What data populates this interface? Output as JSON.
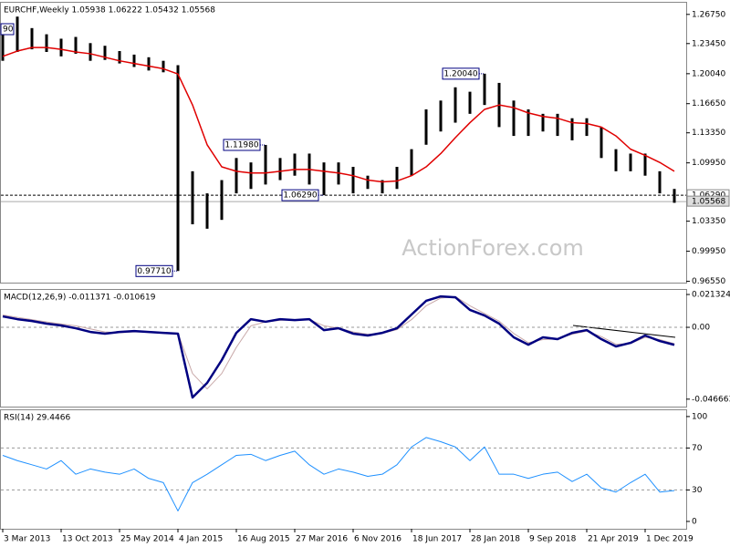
{
  "chart_data": [
    {
      "type": "ohlc",
      "title": "EURCHF,Weekly 1.05938 1.06222 1.05432 1.05568",
      "corner_label": "90",
      "watermark": "ActionForex.com",
      "color": "#000000",
      "categories": [
        "3 Mar 2013",
        null,
        null,
        null,
        "13 Oct 2013",
        null,
        null,
        null,
        "25 May 2014",
        null,
        null,
        null,
        "4 Jan 2015",
        null,
        null,
        null,
        "16 Aug 2015",
        null,
        null,
        null,
        "27 Mar 2016",
        null,
        null,
        null,
        "6 Nov 2016",
        null,
        null,
        null,
        "18 Jun 2017",
        null,
        null,
        null,
        "28 Jan 2018",
        null,
        null,
        null,
        "9 Sep 2018",
        null,
        null,
        null,
        "21 Apr 2019",
        null,
        null,
        null,
        "1 Dec 2019",
        null,
        null
      ],
      "high": [
        1.25,
        1.265,
        1.252,
        1.245,
        1.24,
        1.242,
        1.235,
        1.232,
        1.226,
        1.222,
        1.219,
        1.215,
        1.21,
        1.09,
        1.065,
        1.08,
        1.105,
        1.1,
        1.1198,
        1.105,
        1.11,
        1.11,
        1.1,
        1.1,
        1.095,
        1.085,
        1.08,
        1.095,
        1.115,
        1.16,
        1.17,
        1.185,
        1.18,
        1.2004,
        1.19,
        1.17,
        1.16,
        1.155,
        1.155,
        1.15,
        1.15,
        1.14,
        1.115,
        1.11,
        1.11,
        1.09,
        1.07
      ],
      "low": [
        1.215,
        1.225,
        1.228,
        1.225,
        1.22,
        1.223,
        1.215,
        1.216,
        1.212,
        1.208,
        1.204,
        1.202,
        0.9771,
        1.03,
        1.025,
        1.035,
        1.065,
        1.07,
        1.075,
        1.08,
        1.085,
        1.075,
        1.0629,
        1.075,
        1.065,
        1.07,
        1.065,
        1.07,
        1.085,
        1.12,
        1.135,
        1.145,
        1.155,
        1.165,
        1.14,
        1.13,
        1.13,
        1.135,
        1.13,
        1.125,
        1.13,
        1.105,
        1.09,
        1.09,
        1.085,
        1.065,
        1.05432
      ],
      "series": [
        {
          "color": "#e00000",
          "values": [
            1.22,
            1.226,
            1.23,
            1.23,
            1.228,
            1.225,
            1.223,
            1.219,
            1.215,
            1.212,
            1.209,
            1.206,
            1.2,
            1.165,
            1.12,
            1.095,
            1.09,
            1.088,
            1.088,
            1.09,
            1.092,
            1.092,
            1.09,
            1.088,
            1.085,
            1.08,
            1.078,
            1.079,
            1.085,
            1.095,
            1.11,
            1.128,
            1.145,
            1.16,
            1.165,
            1.162,
            1.156,
            1.152,
            1.15,
            1.145,
            1.144,
            1.14,
            1.13,
            1.115,
            1.108,
            1.1,
            1.09
          ]
        }
      ],
      "annotations": [
        {
          "label": "1.11980",
          "value": 1.1198
        },
        {
          "label": "0.97710",
          "value": 0.9771
        },
        {
          "label": "1.20040",
          "value": 1.2004
        },
        {
          "label": "1.06290",
          "value": 1.0629
        }
      ],
      "price_lines": [
        {
          "label": "1.06290",
          "value": 1.0629,
          "style": "dashed"
        },
        {
          "label": "1.05568",
          "value": 1.05568,
          "style": "solid"
        }
      ],
      "ylim": [
        0.964,
        1.2807
      ],
      "yticks": [
        {
          "value": 1.2675,
          "label": "1.26750"
        },
        {
          "value": 1.2345,
          "label": "1.23450"
        },
        {
          "value": 1.2004,
          "label": "1.20040"
        },
        {
          "value": 1.1665,
          "label": "1.16650"
        },
        {
          "value": 1.1335,
          "label": "1.13350"
        },
        {
          "value": 1.0995,
          "label": "1.09950"
        },
        {
          "value": 1.0335,
          "label": "1.03350"
        },
        {
          "value": 0.9995,
          "label": "0.99950"
        },
        {
          "value": 0.9655,
          "label": "0.96550"
        }
      ]
    },
    {
      "type": "macd",
      "title": "MACD(12,26,9) -0.011371 -0.010619",
      "series": [
        {
          "color": "#000080",
          "values": [
            0.0071,
            0.0053,
            0.0041,
            0.0024,
            0.0012,
            -0.0006,
            -0.003,
            -0.0041,
            -0.003,
            -0.0024,
            -0.003,
            -0.0036,
            -0.0041,
            -0.0456,
            -0.0361,
            -0.0213,
            -0.0036,
            0.0053,
            0.0036,
            0.0053,
            0.0047,
            0.0053,
            -0.0018,
            -0.0006,
            -0.0041,
            -0.0053,
            -0.0036,
            -0.0006,
            0.0083,
            0.0172,
            0.0201,
            0.0195,
            0.0113,
            0.0077,
            0.0024,
            -0.0065,
            -0.0113,
            -0.0065,
            -0.0077,
            -0.0036,
            -0.0018,
            -0.0077,
            -0.0124,
            -0.0101,
            -0.0053,
            -0.0089,
            -0.011371
          ]
        },
        {
          "color": "#c8a8a8",
          "values": [
            0.008,
            0.0065,
            0.005,
            0.0035,
            0.0022,
            0.001,
            -0.001,
            -0.003,
            -0.0035,
            -0.003,
            -0.003,
            -0.0033,
            -0.0038,
            -0.03,
            -0.04,
            -0.03,
            -0.013,
            0.001,
            0.0035,
            0.0045,
            0.0048,
            0.005,
            0.001,
            -0.0005,
            -0.003,
            -0.0045,
            -0.004,
            -0.0015,
            0.005,
            0.014,
            0.019,
            0.02,
            0.014,
            0.009,
            0.004,
            -0.004,
            -0.01,
            -0.008,
            -0.0075,
            -0.0045,
            -0.0025,
            -0.006,
            -0.011,
            -0.0105,
            -0.0065,
            -0.008,
            -0.010619
          ]
        }
      ],
      "levels": [
        0
      ],
      "ylim": [
        -0.0515,
        0.0243
      ],
      "yticks": [
        0.021324,
        {
          "value": 0,
          "label": "0.00"
        },
        -0.046663
      ]
    },
    {
      "type": "line",
      "title": "RSI(14) 29.4466",
      "series": [
        {
          "color": "#1e90ff",
          "values": [
            63,
            58,
            54,
            50,
            58,
            45,
            50,
            47,
            45,
            50,
            41,
            37,
            10,
            37,
            45,
            54,
            63,
            64,
            58,
            63,
            67,
            54,
            45,
            50,
            47,
            43,
            45,
            54,
            71,
            80,
            76,
            71,
            58,
            71,
            45,
            45,
            41,
            45,
            47,
            38,
            45,
            32,
            28,
            37,
            45,
            28,
            29.4466
          ]
        }
      ],
      "levels": [
        70,
        30
      ],
      "ylim": [
        -7,
        106
      ],
      "yticks": [
        100,
        70,
        30,
        0
      ]
    }
  ]
}
